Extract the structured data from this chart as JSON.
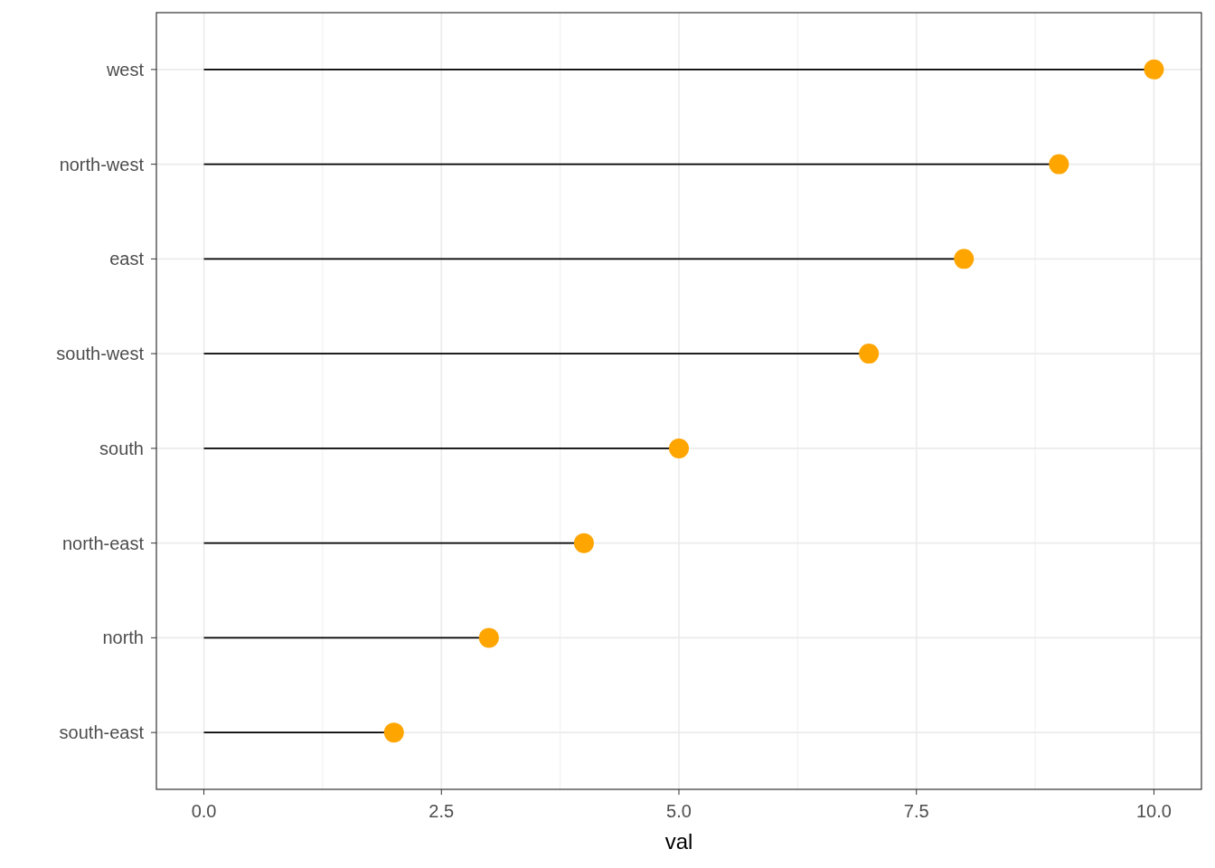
{
  "chart_data": {
    "type": "lollipop",
    "orientation": "horizontal",
    "categories": [
      "west",
      "north-west",
      "east",
      "south-west",
      "south",
      "north-east",
      "north",
      "south-east"
    ],
    "values": [
      10,
      9,
      8,
      7,
      5,
      4,
      3,
      2
    ],
    "color": "#ffa500",
    "xlabel": "val",
    "xlim": [
      -0.5,
      10.5
    ],
    "xticks": [
      {
        "value": 0,
        "label": "0.0"
      },
      {
        "value": 2.5,
        "label": "2.5"
      },
      {
        "value": 5,
        "label": "5.0"
      },
      {
        "value": 7.5,
        "label": "7.5"
      },
      {
        "value": 10,
        "label": "10.0"
      }
    ],
    "grid": true,
    "marker": "circle"
  }
}
